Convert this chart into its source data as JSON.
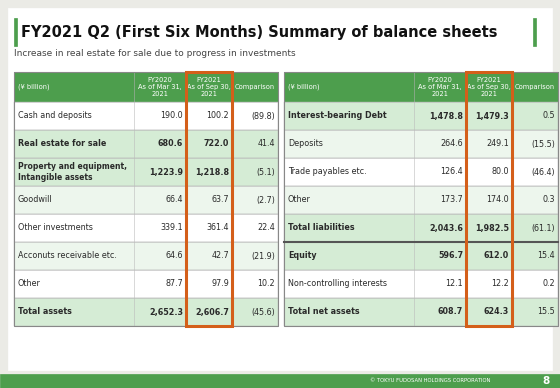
{
  "title": "FY2021 Q2 (First Six Months) Summary of balance sheets",
  "subtitle": "Increase in real estate for sale due to progress in investments",
  "footer": "© TOKYU FUDOSAN HOLDINGS CORPORATION",
  "page_num": "8",
  "bg_color": "#ebebE6",
  "green": "#4d9e4d",
  "orange": "#d45f1a",
  "white": "#ffffff",
  "lt_green_bold": "#d5ecd5",
  "lt_green_alt": "#edf6ed",
  "dark": "#2a2a2a",
  "left_rows": [
    {
      "label": "Cash and deposits",
      "v1": "190.0",
      "v2": "100.2",
      "cmp": "(89.8)",
      "bold": false,
      "two_line": false
    },
    {
      "label": "Real estate for sale",
      "v1": "680.6",
      "v2": "722.0",
      "cmp": "41.4",
      "bold": true,
      "two_line": false
    },
    {
      "label": "Property and equipment,\nIntangible assets",
      "v1": "1,223.9",
      "v2": "1,218.8",
      "cmp": "(5.1)",
      "bold": true,
      "two_line": true
    },
    {
      "label": "Goodwill",
      "v1": "66.4",
      "v2": "63.7",
      "cmp": "(2.7)",
      "bold": false,
      "two_line": false
    },
    {
      "label": "Other investments",
      "v1": "339.1",
      "v2": "361.4",
      "cmp": "22.4",
      "bold": false,
      "two_line": false
    },
    {
      "label": "Acconuts receivable etc.",
      "v1": "64.6",
      "v2": "42.7",
      "cmp": "(21.9)",
      "bold": false,
      "two_line": false
    },
    {
      "label": "Other",
      "v1": "87.7",
      "v2": "97.9",
      "cmp": "10.2",
      "bold": false,
      "two_line": false
    },
    {
      "label": "Total assets",
      "v1": "2,652.3",
      "v2": "2,606.7",
      "cmp": "(45.6)",
      "bold": true,
      "two_line": false
    }
  ],
  "right_rows": [
    {
      "label": "Interest-bearing Debt",
      "v1": "1,478.8",
      "v2": "1,479.3",
      "cmp": "0.5",
      "bold": true,
      "two_line": false
    },
    {
      "label": "Deposits",
      "v1": "264.6",
      "v2": "249.1",
      "cmp": "(15.5)",
      "bold": false,
      "two_line": false
    },
    {
      "label": "Trade payables etc.",
      "v1": "126.4",
      "v2": "80.0",
      "cmp": "(46.4)",
      "bold": false,
      "two_line": false
    },
    {
      "label": "Other",
      "v1": "173.7",
      "v2": "174.0",
      "cmp": "0.3",
      "bold": false,
      "two_line": false
    },
    {
      "label": "Total liabilities",
      "v1": "2,043.6",
      "v2": "1,982.5",
      "cmp": "(61.1)",
      "bold": true,
      "two_line": false
    },
    {
      "label": "Equity",
      "v1": "596.7",
      "v2": "612.0",
      "cmp": "15.4",
      "bold": true,
      "two_line": false
    },
    {
      "label": "Non-controlling interests",
      "v1": "12.1",
      "v2": "12.2",
      "cmp": "0.2",
      "bold": false,
      "two_line": false
    },
    {
      "label": "Total net assets",
      "v1": "608.7",
      "v2": "624.3",
      "cmp": "15.5",
      "bold": true,
      "two_line": false
    }
  ]
}
